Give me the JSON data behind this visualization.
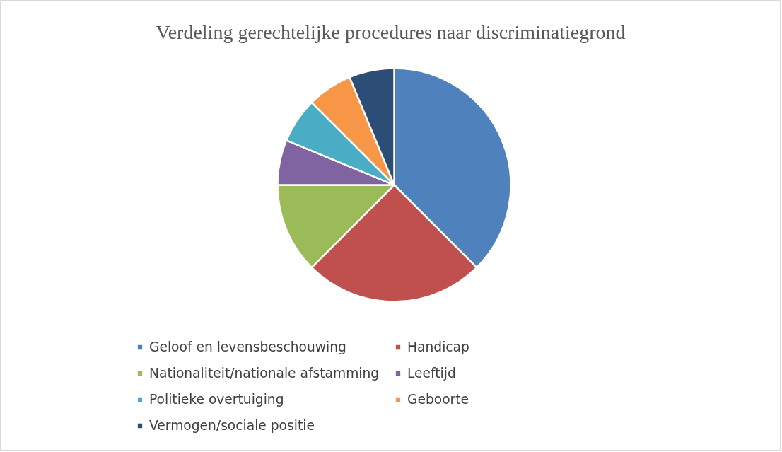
{
  "chart_data": {
    "type": "pie",
    "title": "Verdeling gerechtelijke procedures naar discriminatiegrond",
    "categories": [
      "Geloof en levensbeschouwing",
      "Handicap",
      "Nationaliteit/nationale afstamming",
      "Leeftijd",
      "Politieke overtuiging",
      "Geboorte",
      "Vermogen/sociale positie"
    ],
    "values": [
      37.5,
      25,
      12.5,
      6.25,
      6.25,
      6.25,
      6.25
    ],
    "colors": [
      "#4f81bd",
      "#c0504d",
      "#9bbb59",
      "#8064a2",
      "#4bacc6",
      "#f79646",
      "#2c4d75"
    ],
    "legend": "bottom"
  }
}
